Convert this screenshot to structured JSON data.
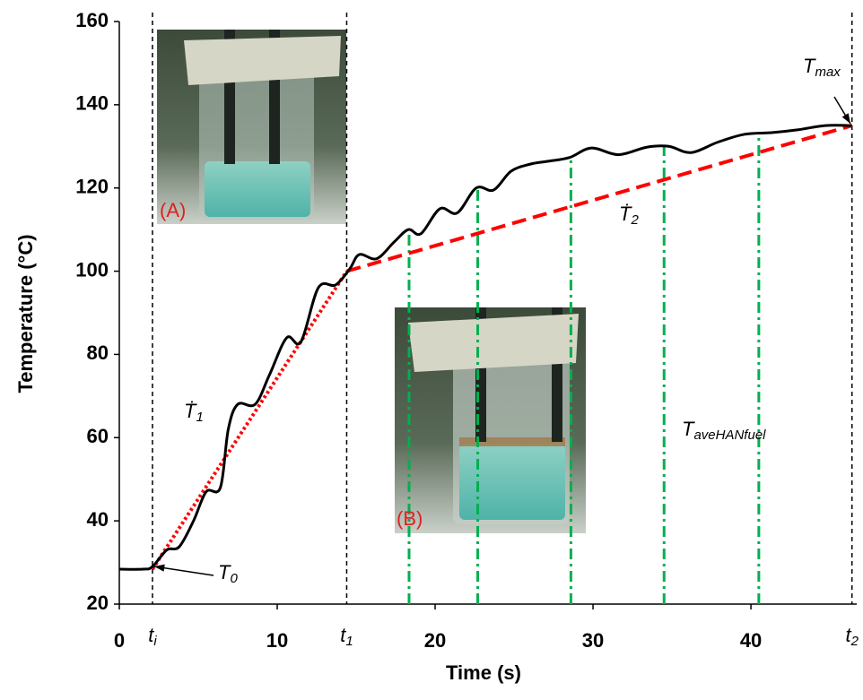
{
  "chart_data": {
    "type": "line",
    "xlabel": "Time (s)",
    "ylabel": "Temperature (°C)",
    "xlim": [
      0,
      46.7
    ],
    "ylim": [
      20,
      160
    ],
    "xticks": [
      0,
      10,
      20,
      30,
      40,
      {
        "value": 2.1,
        "label": "t",
        "sub": "i"
      },
      {
        "value": 14.4,
        "label": "t",
        "sub": "1"
      },
      {
        "value": 46.4,
        "label": "t",
        "sub": "2"
      }
    ],
    "yticks": [
      20,
      40,
      60,
      80,
      100,
      120,
      140,
      160
    ],
    "x": [
      0,
      1.5,
      2.1,
      3.0,
      3.8,
      4.7,
      5.5,
      6.4,
      6.9,
      7.5,
      8.6,
      9.5,
      10.6,
      11.5,
      12.6,
      13.7,
      14.6,
      15.2,
      16.3,
      17.4,
      18.3,
      19.1,
      20.3,
      21.4,
      22.6,
      23.7,
      24.8,
      26.0,
      27.1,
      28.5,
      29.9,
      31.6,
      33.4,
      34.8,
      36.2,
      37.9,
      39.6,
      41.3,
      43.0,
      44.7,
      46.4
    ],
    "series": [
      {
        "color": "#000000",
        "values": [
          28.4,
          28.4,
          29,
          33,
          33.8,
          40,
          47,
          48,
          62,
          68,
          68,
          75,
          84,
          83,
          96,
          96.7,
          100.6,
          104,
          103,
          107,
          110,
          109,
          115,
          114,
          120,
          119.5,
          124,
          125.7,
          126.4,
          127.3,
          129.6,
          128,
          129.8,
          130,
          128.5,
          131,
          132.9,
          133.3,
          134,
          135,
          135
        ]
      }
    ],
    "fit_lines": [
      {
        "color": "#ff0000",
        "style": "dotted",
        "x": [
          2.1,
          14.4
        ],
        "values": [
          28.4,
          100
        ]
      },
      {
        "color": "#ff0000",
        "style": "dashed",
        "x": [
          14.4,
          46.4
        ],
        "values": [
          100,
          135
        ]
      }
    ],
    "marker_lines": {
      "color": "#00b050",
      "x": [
        18.35,
        22.7,
        28.6,
        34.5,
        40.5
      ],
      "values": [
        110,
        120,
        127,
        130,
        133
      ]
    },
    "annotations": [
      {
        "text": "T",
        "sub": "0"
      },
      {
        "text": "T",
        "sub": "max"
      },
      {
        "text": "Ṫ",
        "sub": "1"
      },
      {
        "text": "Ṫ",
        "sub": "2"
      },
      {
        "text": "T",
        "sub": "aveHANfuel"
      }
    ],
    "photo_labels": [
      "(A)",
      "(B)"
    ]
  }
}
